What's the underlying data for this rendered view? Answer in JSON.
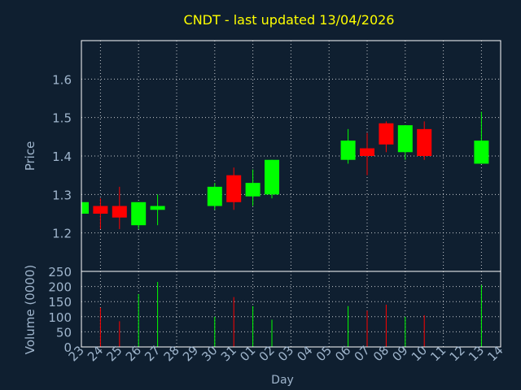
{
  "colors": {
    "background": "#0f1f30",
    "frame": "#ffffff",
    "grid": "#ffffff",
    "title": "#ffff00",
    "axis_text": "#9fb5cc",
    "up": "#00ff00",
    "down": "#ff0000"
  },
  "chart_data": {
    "type": "candlestick",
    "title": "CNDT - last updated 13/04/2026",
    "xlabel": "Day",
    "price_ylabel": "Price",
    "volume_ylabel": "Volume (0000)",
    "x_ticks": [
      "23",
      "24",
      "25",
      "26",
      "27",
      "28",
      "29",
      "30",
      "31",
      "01",
      "02",
      "03",
      "04",
      "05",
      "06",
      "07",
      "08",
      "09",
      "10",
      "11",
      "12",
      "13",
      "14"
    ],
    "price_yticks": [
      "1.2",
      "1.3",
      "1.4",
      "1.5",
      "1.6"
    ],
    "price_ylim": [
      1.1,
      1.7
    ],
    "volume_yticks": [
      "0",
      "50",
      "100",
      "150",
      "200",
      "250"
    ],
    "volume_ylim": [
      0,
      250
    ],
    "grid": true,
    "candles": [
      {
        "day": "23",
        "open": 1.25,
        "high": 1.28,
        "low": 1.25,
        "close": 1.28,
        "volume": 0
      },
      {
        "day": "24",
        "open": 1.27,
        "high": 1.29,
        "low": 1.21,
        "close": 1.25,
        "volume": 130
      },
      {
        "day": "25",
        "open": 1.27,
        "high": 1.32,
        "low": 1.21,
        "close": 1.24,
        "volume": 85
      },
      {
        "day": "26",
        "open": 1.22,
        "high": 1.28,
        "low": 1.21,
        "close": 1.28,
        "volume": 175
      },
      {
        "day": "27",
        "open": 1.26,
        "high": 1.3,
        "low": 1.22,
        "close": 1.27,
        "volume": 215
      },
      {
        "day": "30",
        "open": 1.27,
        "high": 1.33,
        "low": 1.26,
        "close": 1.32,
        "volume": 100
      },
      {
        "day": "31",
        "open": 1.35,
        "high": 1.37,
        "low": 1.26,
        "close": 1.28,
        "volume": 165
      },
      {
        "day": "01",
        "open": 1.295,
        "high": 1.365,
        "low": 1.27,
        "close": 1.33,
        "volume": 135
      },
      {
        "day": "02",
        "open": 1.3,
        "high": 1.39,
        "low": 1.29,
        "close": 1.39,
        "volume": 90
      },
      {
        "day": "06",
        "open": 1.39,
        "high": 1.47,
        "low": 1.38,
        "close": 1.44,
        "volume": 135
      },
      {
        "day": "07",
        "open": 1.42,
        "high": 1.46,
        "low": 1.35,
        "close": 1.4,
        "volume": 120
      },
      {
        "day": "08",
        "open": 1.485,
        "high": 1.49,
        "low": 1.41,
        "close": 1.43,
        "volume": 140
      },
      {
        "day": "09",
        "open": 1.41,
        "high": 1.48,
        "low": 1.39,
        "close": 1.48,
        "volume": 100
      },
      {
        "day": "10",
        "open": 1.47,
        "high": 1.49,
        "low": 1.39,
        "close": 1.4,
        "volume": 105
      },
      {
        "day": "13",
        "open": 1.38,
        "high": 1.515,
        "low": 1.38,
        "close": 1.44,
        "volume": 205
      }
    ]
  }
}
